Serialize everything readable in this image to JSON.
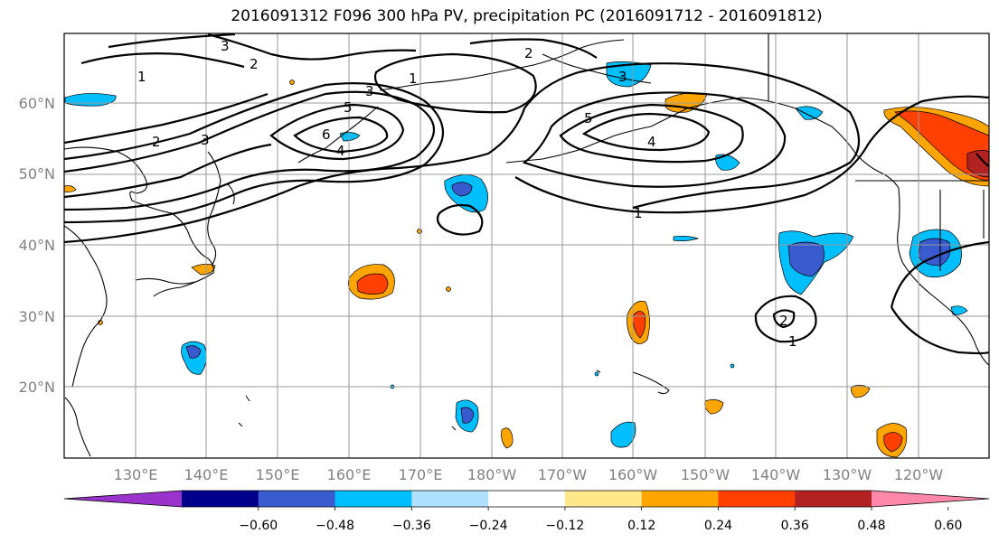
{
  "title": "2016091312 F096 300 hPa PV, precipitation PC (2016091712 - 2016091812)",
  "map": {
    "lon_ticks": [
      "130°E",
      "140°E",
      "150°E",
      "160°E",
      "170°E",
      "180°W",
      "170°W",
      "160°W",
      "150°W",
      "140°W",
      "130°W",
      "120°W"
    ],
    "lat_ticks": [
      "60°N",
      "50°N",
      "40°N",
      "30°N",
      "20°N"
    ],
    "grid": true,
    "fill_colors": {
      "strong_negative": "#3a5bd0",
      "negative": "#00bfff",
      "weak_negative": "#b0e0ff",
      "weak_positive": "#ffe88a",
      "positive": "#ffa500",
      "strong_positive": "#ff4000",
      "very_strong_positive": "#b22222"
    },
    "pv_contour_labels": [
      "1",
      "2",
      "3",
      "4",
      "5",
      "6"
    ]
  },
  "colorbar": {
    "colors": [
      "#9933cc",
      "#00008b",
      "#3a5bd0",
      "#00bfff",
      "#b0e0ff",
      "#ffffff",
      "#ffe88a",
      "#ffa500",
      "#ff4000",
      "#b22222",
      "#ff88aa"
    ],
    "tick_labels": [
      "−0.60",
      "−0.48",
      "−0.36",
      "−0.24",
      "−0.12",
      "0.12",
      "0.24",
      "0.36",
      "0.48",
      "0.60"
    ]
  }
}
